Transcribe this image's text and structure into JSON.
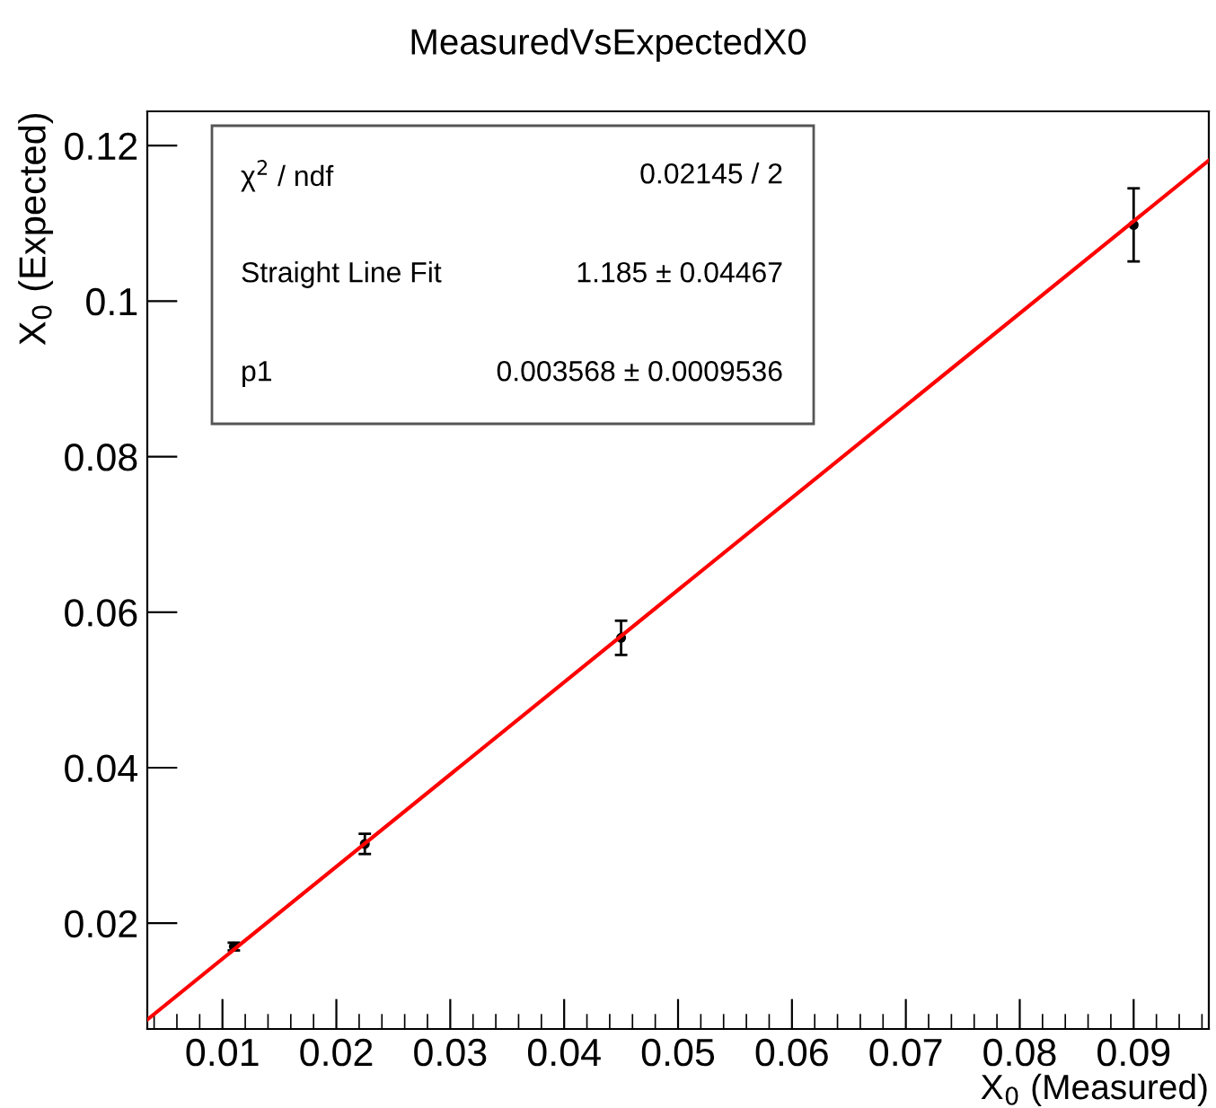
{
  "chart_data": {
    "type": "scatter",
    "title": "MeasuredVsExpectedX0",
    "xlabel": "X$_{0}$ (Measured)",
    "ylabel": "X$_{0}$ (Expected)",
    "x": [
      0.011,
      0.0225,
      0.045,
      0.09
    ],
    "series": [
      {
        "color": "#000000",
        "marker": "circle",
        "values": [
          0.017,
          0.0302,
          0.0567,
          0.1098
        ],
        "errors": [
          0.0005,
          0.0013,
          0.0022,
          0.0047
        ]
      },
      {
        "type": "line",
        "color": "#ff0000",
        "x": [
          0.0034,
          0.0966
        ],
        "values": [
          0.0076,
          0.1181
        ]
      }
    ],
    "xlim": [
      0.0034,
      0.0966
    ],
    "ylim": [
      0.0064,
      0.1244
    ],
    "xticks": [
      0.01,
      0.02,
      0.03,
      0.04,
      0.05,
      0.06,
      0.07,
      0.08,
      0.09
    ],
    "yticks": [
      0.02,
      0.04,
      0.06,
      0.08,
      0.1,
      0.12
    ],
    "grid": false,
    "legend": false,
    "annotations": [
      "χ$^{2}$ / ndf",
      "0.02145 / 2",
      "Straight Line Fit",
      "1.185 ± 0.04467",
      "p1",
      "0.003568 ± 0.0009536"
    ]
  }
}
